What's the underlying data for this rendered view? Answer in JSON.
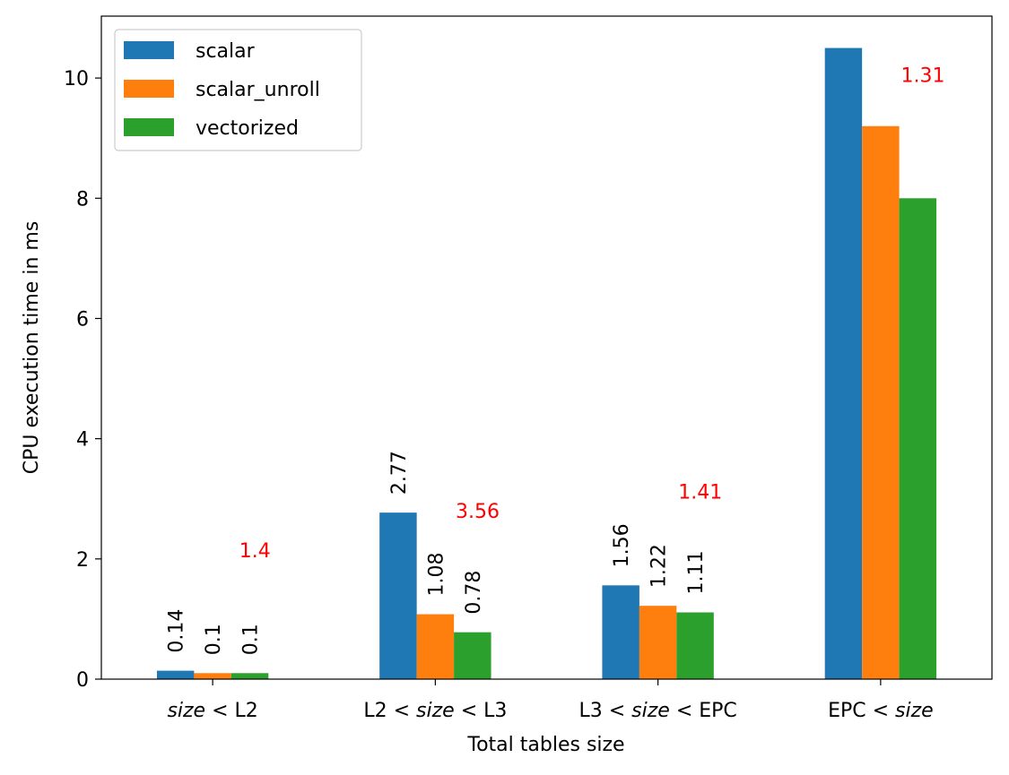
{
  "chart_data": {
    "type": "bar",
    "title": "",
    "xlabel": "Total tables size",
    "ylabel": "CPU execution time in ms",
    "categories": [
      {
        "parts": [
          {
            "text": "size",
            "italic": true
          },
          {
            "text": " < L2",
            "italic": false
          }
        ]
      },
      {
        "parts": [
          {
            "text": "L2 < ",
            "italic": false
          },
          {
            "text": "size",
            "italic": true
          },
          {
            "text": " < L3",
            "italic": false
          }
        ]
      },
      {
        "parts": [
          {
            "text": "L3 < ",
            "italic": false
          },
          {
            "text": "size",
            "italic": true
          },
          {
            "text": " < EPC",
            "italic": false
          }
        ]
      },
      {
        "parts": [
          {
            "text": "EPC < ",
            "italic": false
          },
          {
            "text": "size",
            "italic": true
          }
        ]
      }
    ],
    "series": [
      {
        "name": "scalar",
        "color": "#1f77b4",
        "values": [
          0.14,
          2.77,
          1.56,
          10.5
        ],
        "labels": [
          "0.14",
          "2.77",
          "1.56",
          ""
        ]
      },
      {
        "name": "scalar_unroll",
        "color": "#ff7f0e",
        "values": [
          0.1,
          1.08,
          1.22,
          9.2
        ],
        "labels": [
          "0.1",
          "1.08",
          "1.22",
          ""
        ]
      },
      {
        "name": "vectorized",
        "color": "#2ca02c",
        "values": [
          0.1,
          0.78,
          1.11,
          8.0
        ],
        "labels": [
          "0.1",
          "0.78",
          "1.11",
          ""
        ]
      }
    ],
    "speedups": [
      {
        "text": "1.4",
        "y": 2.15
      },
      {
        "text": "3.56",
        "y": 2.8
      },
      {
        "text": "1.41",
        "y": 3.12
      },
      {
        "text": "1.31",
        "y": 10.05
      }
    ],
    "speedup_color": "#ff0000",
    "ylim": [
      0,
      11.03
    ],
    "yticks": [
      0,
      2,
      4,
      6,
      8,
      10
    ],
    "legend_position": "upper left",
    "grid": false
  }
}
